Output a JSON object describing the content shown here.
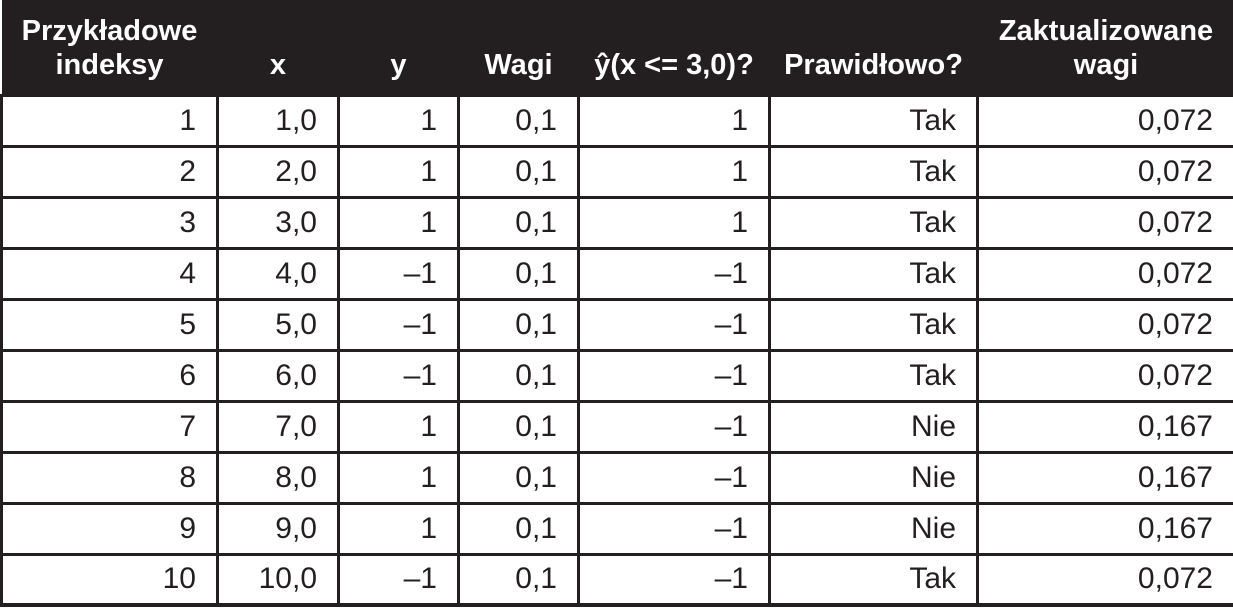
{
  "table": {
    "headers": [
      "Przykładowe indeksy",
      "x",
      "y",
      "Wagi",
      "ŷ(x <= 3,0)?",
      "Prawidłowo?",
      "Zaktualizowane wagi"
    ],
    "rows": [
      [
        "1",
        "1,0",
        "1",
        "0,1",
        "1",
        "Tak",
        "0,072"
      ],
      [
        "2",
        "2,0",
        "1",
        "0,1",
        "1",
        "Tak",
        "0,072"
      ],
      [
        "3",
        "3,0",
        "1",
        "0,1",
        "1",
        "Tak",
        "0,072"
      ],
      [
        "4",
        "4,0",
        "–1",
        "0,1",
        "–1",
        "Tak",
        "0,072"
      ],
      [
        "5",
        "5,0",
        "–1",
        "0,1",
        "–1",
        "Tak",
        "0,072"
      ],
      [
        "6",
        "6,0",
        "–1",
        "0,1",
        "–1",
        "Tak",
        "0,072"
      ],
      [
        "7",
        "7,0",
        "1",
        "0,1",
        "–1",
        "Nie",
        "0,167"
      ],
      [
        "8",
        "8,0",
        "1",
        "0,1",
        "–1",
        "Nie",
        "0,167"
      ],
      [
        "9",
        "9,0",
        "1",
        "0,1",
        "–1",
        "Nie",
        "0,167"
      ],
      [
        "10",
        "10,0",
        "–1",
        "0,1",
        "–1",
        "Tak",
        "0,072"
      ]
    ]
  }
}
